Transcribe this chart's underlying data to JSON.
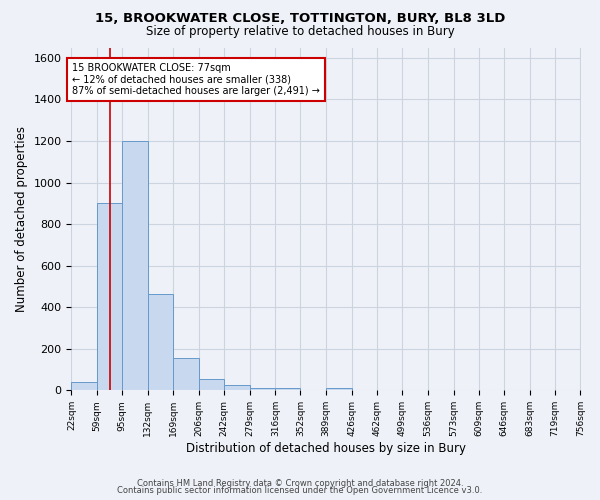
{
  "title1": "15, BROOKWATER CLOSE, TOTTINGTON, BURY, BL8 3LD",
  "title2": "Size of property relative to detached houses in Bury",
  "xlabel": "Distribution of detached houses by size in Bury",
  "ylabel": "Number of detached properties",
  "footer1": "Contains HM Land Registry data © Crown copyright and database right 2024.",
  "footer2": "Contains public sector information licensed under the Open Government Licence v3.0.",
  "annotation_line1": "15 BROOKWATER CLOSE: 77sqm",
  "annotation_line2": "← 12% of detached houses are smaller (338)",
  "annotation_line3": "87% of semi-detached houses are larger (2,491) →",
  "property_size": 77,
  "bin_edges": [
    22,
    59,
    95,
    132,
    169,
    206,
    242,
    279,
    316,
    352,
    389,
    426,
    462,
    499,
    536,
    573,
    609,
    646,
    683,
    719,
    756
  ],
  "bar_heights": [
    40,
    900,
    1200,
    465,
    155,
    55,
    28,
    12,
    12,
    0,
    12,
    0,
    0,
    0,
    0,
    0,
    0,
    0,
    0,
    0
  ],
  "bar_color": "#c8d8ee",
  "bar_edge_color": "#6699cc",
  "vline_color": "#cc0000",
  "annotation_box_color": "#cc0000",
  "grid_color": "#ccd4e0",
  "background_color": "#eef2f8",
  "plot_bg_color": "#eef2f8",
  "ylim": [
    0,
    1650
  ],
  "yticks": [
    0,
    200,
    400,
    600,
    800,
    1000,
    1200,
    1400,
    1600
  ]
}
